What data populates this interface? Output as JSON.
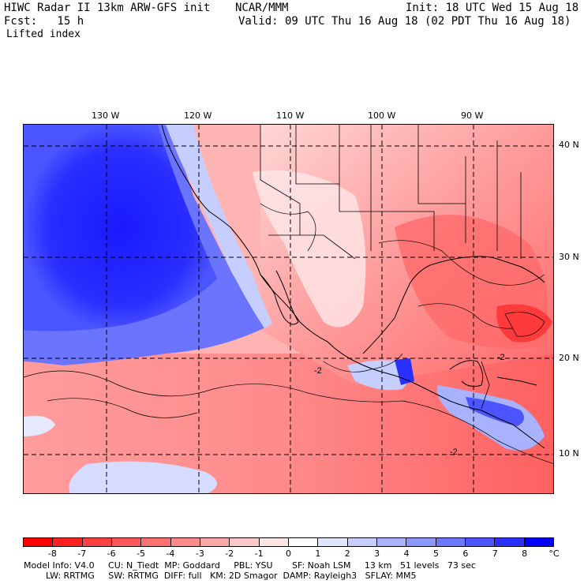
{
  "header": {
    "title": "HIWC Radar II 13km ARW-GFS init",
    "center": "NCAR/MMM",
    "init": "Init: 18 UTC Wed 15 Aug 18",
    "fcst": "Fcst:   15 h",
    "valid": "Valid: 09 UTC Thu 16 Aug 18 (02 PDT Thu 16 Aug 18)",
    "field": "Lifted index"
  },
  "map": {
    "lon_labels": [
      "130 W",
      "120 W",
      "110 W",
      "100 W",
      "90 W"
    ],
    "lat_labels": [
      "40 N",
      "30 N",
      "20 N",
      "10 N"
    ],
    "contour_labels": [
      "-2",
      "-2",
      "-2"
    ]
  },
  "colorbar": {
    "ticks": [
      "-8",
      "-7",
      "-6",
      "-5",
      "-4",
      "-3",
      "-2",
      "-1",
      "0",
      "1",
      "2",
      "3",
      "4",
      "5",
      "6",
      "7",
      "8"
    ],
    "unit": "°C",
    "colors": [
      "#ff0000",
      "#ff2020",
      "#ff4040",
      "#ff5858",
      "#ff7070",
      "#ff8a8a",
      "#ffa8a8",
      "#ffc8c8",
      "#ffe6e6",
      "#ffffff",
      "#e0e6ff",
      "#c6ceff",
      "#a8b2ff",
      "#8c96ff",
      "#6e78ff",
      "#4a54ff",
      "#2a30ff",
      "#0000ff"
    ]
  },
  "footer": {
    "line1": "Model Info: V4.0     CU: N_Tiedt  MP: Goddard     PBL: YSU       SF: Noah LSM     13 km   51 levels   73 sec",
    "line2": "        LW: RRTMG     SW: RRTMG  DIFF: full   KM: 2D Smagor  DAMP: Rayleigh3   SFLAY: MM5"
  }
}
